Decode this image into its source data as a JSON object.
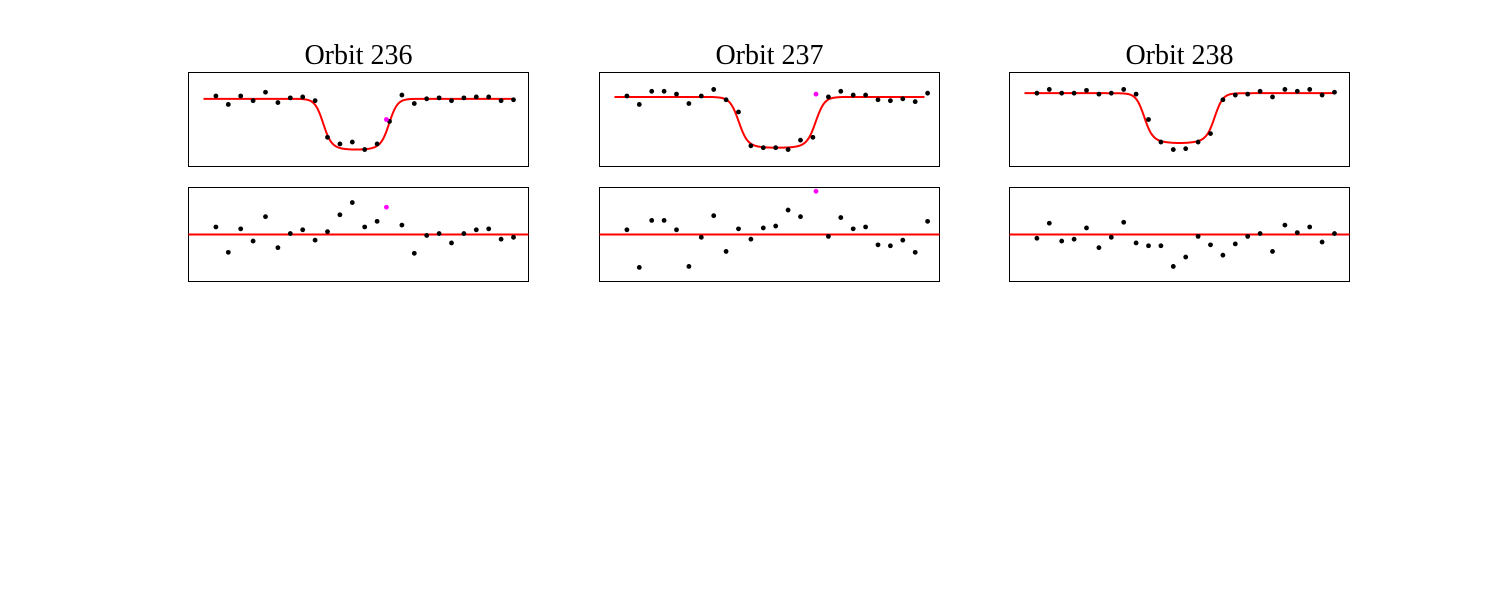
{
  "figure": {
    "colors": {
      "data": "#000000",
      "model": "#ff0000",
      "outlier": "#ff00ff",
      "frame": "#000000"
    }
  },
  "chart_data": [
    {
      "type": "scatter",
      "title": "Orbit 236",
      "xlabel": "",
      "ylabel": "",
      "grid": false,
      "ticks": false,
      "lightcurve": {
        "xlim": [
          0,
          100
        ],
        "ylim": [
          0,
          100
        ],
        "points": [
          [
            4,
            75
          ],
          [
            8,
            66
          ],
          [
            12,
            75
          ],
          [
            16,
            70
          ],
          [
            20,
            79
          ],
          [
            24,
            68
          ],
          [
            28,
            73
          ],
          [
            32,
            74
          ],
          [
            36,
            70
          ],
          [
            40,
            31
          ],
          [
            44,
            24
          ],
          [
            48,
            26
          ],
          [
            52,
            18
          ],
          [
            56,
            24
          ],
          [
            60,
            48
          ],
          [
            64,
            76
          ],
          [
            68,
            67
          ],
          [
            72,
            72
          ],
          [
            76,
            73
          ],
          [
            80,
            70
          ],
          [
            84,
            73
          ],
          [
            88,
            74
          ],
          [
            92,
            74
          ],
          [
            96,
            70
          ],
          [
            100,
            71
          ]
        ],
        "outliers": [
          [
            59,
            50
          ]
        ],
        "model": {
          "baseline": 72,
          "depth": 54,
          "ingress": 38.5,
          "egress": 60,
          "edge_width": 1.3,
          "curvature": 4
        }
      },
      "residuals": {
        "xlim": [
          0,
          100
        ],
        "ylim": [
          -50,
          50
        ],
        "points": [
          [
            4,
            8
          ],
          [
            8,
            -19
          ],
          [
            12,
            6
          ],
          [
            16,
            -7
          ],
          [
            20,
            19
          ],
          [
            24,
            -14
          ],
          [
            28,
            1
          ],
          [
            32,
            5
          ],
          [
            36,
            -6
          ],
          [
            40,
            3
          ],
          [
            44,
            21
          ],
          [
            48,
            34
          ],
          [
            52,
            8
          ],
          [
            56,
            14
          ],
          [
            64,
            10
          ],
          [
            68,
            -20
          ],
          [
            72,
            -1
          ],
          [
            76,
            1
          ],
          [
            80,
            -9
          ],
          [
            84,
            1
          ],
          [
            88,
            5
          ],
          [
            92,
            6
          ],
          [
            96,
            -5
          ],
          [
            100,
            -3
          ]
        ],
        "outliers": [
          [
            59,
            29
          ]
        ],
        "reference": 0
      }
    },
    {
      "type": "scatter",
      "title": "Orbit 237",
      "xlabel": "",
      "ylabel": "",
      "grid": false,
      "ticks": false,
      "lightcurve": {
        "xlim": [
          0,
          100
        ],
        "ylim": [
          0,
          100
        ],
        "points": [
          [
            4,
            75
          ],
          [
            8,
            66
          ],
          [
            12,
            80
          ],
          [
            16,
            80
          ],
          [
            20,
            77
          ],
          [
            24,
            67
          ],
          [
            28,
            75
          ],
          [
            32,
            82
          ],
          [
            36,
            71
          ],
          [
            40,
            58
          ],
          [
            44,
            22
          ],
          [
            48,
            20
          ],
          [
            52,
            20
          ],
          [
            56,
            18
          ],
          [
            60,
            28
          ],
          [
            64,
            31
          ],
          [
            69,
            74
          ],
          [
            73,
            80
          ],
          [
            77,
            76
          ],
          [
            81,
            76
          ],
          [
            85,
            71
          ],
          [
            89,
            70
          ],
          [
            93,
            72
          ],
          [
            97,
            69
          ],
          [
            101,
            78
          ]
        ],
        "outliers": [
          [
            65,
            77
          ]
        ],
        "model": {
          "baseline": 74,
          "depth": 54,
          "ingress": 40,
          "egress": 65,
          "edge_width": 1.4,
          "curvature": 3
        }
      },
      "residuals": {
        "xlim": [
          0,
          100
        ],
        "ylim": [
          -50,
          50
        ],
        "points": [
          [
            4,
            5
          ],
          [
            8,
            -35
          ],
          [
            12,
            15
          ],
          [
            16,
            15
          ],
          [
            20,
            5
          ],
          [
            24,
            -34
          ],
          [
            28,
            -3
          ],
          [
            32,
            20
          ],
          [
            36,
            -18
          ],
          [
            40,
            6
          ],
          [
            44,
            -5
          ],
          [
            48,
            7
          ],
          [
            52,
            9
          ],
          [
            56,
            26
          ],
          [
            60,
            19
          ],
          [
            69,
            -2
          ],
          [
            73,
            18
          ],
          [
            77,
            6
          ],
          [
            81,
            8
          ],
          [
            85,
            -11
          ],
          [
            89,
            -12
          ],
          [
            93,
            -6
          ],
          [
            97,
            -19
          ],
          [
            101,
            14
          ]
        ],
        "outliers": [
          [
            65,
            46
          ]
        ],
        "reference": 0
      }
    },
    {
      "type": "scatter",
      "title": "Orbit 238",
      "xlabel": "",
      "ylabel": "",
      "grid": false,
      "ticks": false,
      "lightcurve": {
        "xlim": [
          0,
          100
        ],
        "ylim": [
          0,
          100
        ],
        "points": [
          [
            4,
            78
          ],
          [
            8,
            82
          ],
          [
            12,
            78
          ],
          [
            16,
            78
          ],
          [
            20,
            81
          ],
          [
            24,
            77
          ],
          [
            28,
            78
          ],
          [
            32,
            82
          ],
          [
            36,
            77
          ],
          [
            40,
            50
          ],
          [
            44,
            26
          ],
          [
            48,
            18
          ],
          [
            52,
            19
          ],
          [
            56,
            26
          ],
          [
            60,
            35
          ],
          [
            64,
            71
          ],
          [
            68,
            76
          ],
          [
            72,
            77
          ],
          [
            76,
            80
          ],
          [
            80,
            74
          ],
          [
            84,
            82
          ],
          [
            88,
            80
          ],
          [
            92,
            82
          ],
          [
            96,
            76
          ],
          [
            100,
            79
          ]
        ],
        "outliers": [],
        "model": {
          "baseline": 78,
          "depth": 53,
          "ingress": 38.5,
          "egress": 61.5,
          "edge_width": 1.3,
          "curvature": 5
        }
      },
      "residuals": {
        "xlim": [
          0,
          100
        ],
        "ylim": [
          -50,
          50
        ],
        "points": [
          [
            4,
            -4
          ],
          [
            8,
            12
          ],
          [
            12,
            -7
          ],
          [
            16,
            -5
          ],
          [
            20,
            7
          ],
          [
            24,
            -14
          ],
          [
            28,
            -3
          ],
          [
            32,
            13
          ],
          [
            36,
            -9
          ],
          [
            40,
            -12
          ],
          [
            44,
            -12
          ],
          [
            48,
            -34
          ],
          [
            52,
            -24
          ],
          [
            56,
            -2
          ],
          [
            60,
            -11
          ],
          [
            64,
            -22
          ],
          [
            68,
            -10
          ],
          [
            72,
            -2
          ],
          [
            76,
            1
          ],
          [
            80,
            -18
          ],
          [
            84,
            10
          ],
          [
            88,
            2
          ],
          [
            92,
            8
          ],
          [
            96,
            -8
          ],
          [
            100,
            1
          ]
        ],
        "outliers": [],
        "reference": 0
      }
    }
  ]
}
